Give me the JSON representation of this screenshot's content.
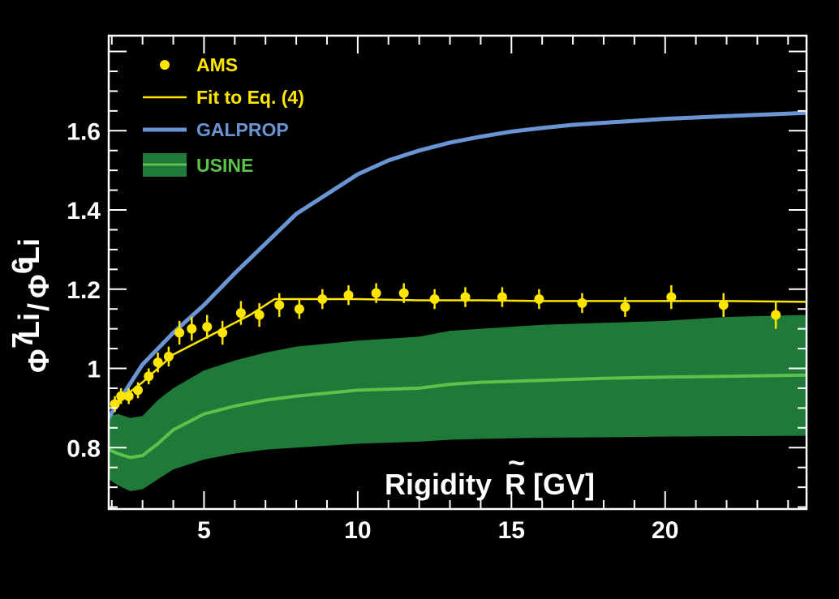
{
  "chart_data": {
    "type": "line",
    "xlabel": "Rigidity",
    "xlabel_symbol": "R",
    "xlabel_unit": "[GV]",
    "ylabel_parts": {
      "phi": "Φ",
      "sup1": "7",
      "li1": "Li",
      "slash": "/",
      "phi2": "Φ",
      "sup2": "6",
      "li2": "Li"
    },
    "xlim": [
      1.9,
      24.6
    ],
    "ylim": [
      0.645,
      1.84
    ],
    "xticks": [
      5,
      10,
      15,
      20
    ],
    "xtick_labels": [
      "5",
      "10",
      "15",
      "20"
    ],
    "yticks": [
      0.8,
      1.0,
      1.2,
      1.4,
      1.6
    ],
    "ytick_labels": [
      "0.8",
      "1",
      "1.2",
      "1.4",
      "1.6"
    ],
    "legend_position": "top-left",
    "colors": {
      "ams": "#ffe600",
      "fit": "#ffe600",
      "galprop": "#6a94d4",
      "usine_band": "#1f7a3a",
      "usine_line": "#5bc24a",
      "frame": "#ffffff"
    },
    "series": [
      {
        "name": "AMS",
        "kind": "points",
        "x": [
          2.1,
          2.3,
          2.55,
          2.85,
          3.2,
          3.5,
          3.85,
          4.2,
          4.6,
          5.1,
          5.6,
          6.2,
          6.8,
          7.45,
          8.1,
          8.85,
          9.7,
          10.6,
          11.5,
          12.5,
          13.5,
          14.7,
          15.9,
          17.3,
          18.7,
          20.2,
          21.9,
          23.6
        ],
        "y": [
          0.91,
          0.93,
          0.93,
          0.945,
          0.98,
          1.015,
          1.03,
          1.09,
          1.1,
          1.105,
          1.09,
          1.14,
          1.135,
          1.16,
          1.15,
          1.175,
          1.185,
          1.19,
          1.19,
          1.175,
          1.18,
          1.18,
          1.175,
          1.165,
          1.155,
          1.18,
          1.16,
          1.135
        ],
        "yerr": [
          0.02,
          0.02,
          0.02,
          0.02,
          0.02,
          0.025,
          0.025,
          0.03,
          0.03,
          0.03,
          0.03,
          0.03,
          0.03,
          0.03,
          0.025,
          0.025,
          0.025,
          0.025,
          0.025,
          0.025,
          0.025,
          0.025,
          0.025,
          0.025,
          0.025,
          0.03,
          0.03,
          0.035
        ]
      },
      {
        "name": "Fit to Eq. (4)",
        "kind": "line",
        "x": [
          2.0,
          2.5,
          3.0,
          3.5,
          4.0,
          4.5,
          5.0,
          5.5,
          6.0,
          6.5,
          7.0,
          7.3,
          8.0,
          10.0,
          12.0,
          14.0,
          16.0,
          18.0,
          20.0,
          22.0,
          24.6
        ],
        "y": [
          0.9,
          0.935,
          0.965,
          1.0,
          1.035,
          1.055,
          1.075,
          1.095,
          1.115,
          1.135,
          1.16,
          1.175,
          1.175,
          1.175,
          1.172,
          1.172,
          1.17,
          1.17,
          1.17,
          1.17,
          1.168
        ]
      },
      {
        "name": "GALPROP",
        "kind": "line",
        "x": [
          1.9,
          2.5,
          3.0,
          4.0,
          5.0,
          6.0,
          7.0,
          8.0,
          9.0,
          10.0,
          11.0,
          12.0,
          13.0,
          14.0,
          15.0,
          16.0,
          17.0,
          18.0,
          19.0,
          20.0,
          22.0,
          24.6
        ],
        "y": [
          0.875,
          0.95,
          1.01,
          1.09,
          1.16,
          1.24,
          1.315,
          1.39,
          1.44,
          1.49,
          1.525,
          1.55,
          1.57,
          1.585,
          1.598,
          1.607,
          1.615,
          1.62,
          1.625,
          1.63,
          1.637,
          1.645
        ]
      },
      {
        "name": "USINE",
        "kind": "band",
        "x": [
          1.9,
          2.2,
          2.6,
          3.0,
          3.5,
          4.0,
          5.0,
          6.0,
          7.0,
          8.0,
          10.0,
          12.0,
          13.0,
          14.0,
          16.0,
          18.0,
          20.0,
          22.0,
          24.6
        ],
        "y": [
          0.795,
          0.785,
          0.775,
          0.78,
          0.81,
          0.845,
          0.885,
          0.905,
          0.92,
          0.93,
          0.945,
          0.95,
          0.96,
          0.965,
          0.97,
          0.975,
          0.978,
          0.98,
          0.983
        ],
        "y_low": [
          0.72,
          0.705,
          0.69,
          0.695,
          0.72,
          0.745,
          0.77,
          0.785,
          0.795,
          0.8,
          0.81,
          0.815,
          0.82,
          0.822,
          0.825,
          0.826,
          0.828,
          0.829,
          0.83
        ],
        "y_high": [
          0.88,
          0.885,
          0.875,
          0.88,
          0.92,
          0.95,
          0.995,
          1.02,
          1.04,
          1.055,
          1.07,
          1.08,
          1.095,
          1.1,
          1.11,
          1.115,
          1.12,
          1.13,
          1.135
        ]
      }
    ]
  }
}
